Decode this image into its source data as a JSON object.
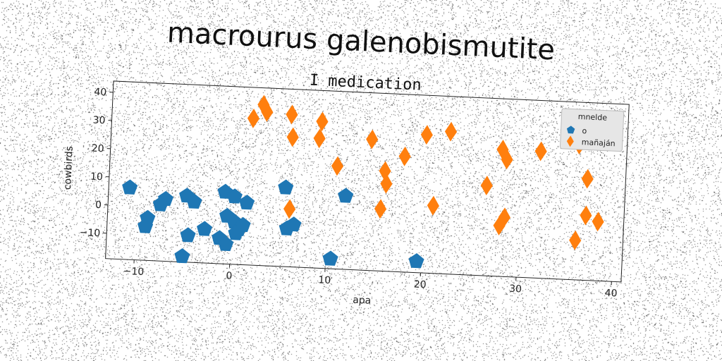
{
  "title": "macrourus galenobismutite",
  "chart_data": {
    "type": "scatter",
    "subtitle": "I medication",
    "xlabel": "apa",
    "ylabel": "cowbirds",
    "xlim": [
      -13,
      41
    ],
    "ylim": [
      -19,
      44
    ],
    "xticks": [
      -10,
      0,
      10,
      20,
      30,
      40
    ],
    "yticks": [
      -10,
      0,
      10,
      20,
      30,
      40
    ],
    "xtick_labels": [
      "−10",
      "0",
      "10",
      "20",
      "30",
      "40"
    ],
    "ytick_labels": [
      "−10",
      "0",
      "10",
      "20",
      "30",
      "40"
    ],
    "legend": {
      "title": "mnelde",
      "placement": "top-right"
    },
    "series": [
      {
        "name": "o",
        "marker": "pentagon",
        "color": "#1f77b4",
        "points": [
          [
            -10.8,
            6.5
          ],
          [
            -8.8,
            -4
          ],
          [
            -9.0,
            -7
          ],
          [
            -7.0,
            3
          ],
          [
            -7.5,
            1
          ],
          [
            -4.8,
            4.5
          ],
          [
            -4.0,
            2.5
          ],
          [
            -4.5,
            -9.5
          ],
          [
            -5.0,
            -17
          ],
          [
            -2.8,
            -7
          ],
          [
            -1.2,
            -10
          ],
          [
            -0.5,
            -12
          ],
          [
            -0.8,
            6.5
          ],
          [
            0.2,
            5
          ],
          [
            -0.5,
            -2
          ],
          [
            0.3,
            -4
          ],
          [
            0.8,
            -6.5
          ],
          [
            1.2,
            -5
          ],
          [
            0.5,
            -8
          ],
          [
            1.5,
            3
          ],
          [
            5.5,
            9
          ],
          [
            5.8,
            -5.5
          ],
          [
            6.5,
            -4
          ],
          [
            11.8,
            7
          ],
          [
            10.5,
            -15.5
          ],
          [
            19.5,
            -15
          ]
        ]
      },
      {
        "name": "mañaján",
        "marker": "thin_diamond",
        "color": "#ff7f0e",
        "points": [
          [
            1.8,
            33
          ],
          [
            2.8,
            38
          ],
          [
            3.2,
            35.5
          ],
          [
            5.8,
            35
          ],
          [
            6.0,
            27
          ],
          [
            8.8,
            27
          ],
          [
            9.0,
            33
          ],
          [
            6.0,
            1.5
          ],
          [
            10.8,
            17.5
          ],
          [
            14.3,
            27.5
          ],
          [
            15.8,
            16.5
          ],
          [
            16.0,
            12
          ],
          [
            15.5,
            3
          ],
          [
            17.8,
            22
          ],
          [
            20.0,
            30
          ],
          [
            22.5,
            31.5
          ],
          [
            21.0,
            5
          ],
          [
            26.5,
            13
          ],
          [
            28.0,
            26
          ],
          [
            28.5,
            22.5
          ],
          [
            28.5,
            2
          ],
          [
            28.0,
            -1
          ],
          [
            32.0,
            26
          ],
          [
            36.0,
            29
          ],
          [
            36.0,
            -5
          ],
          [
            37.0,
            17
          ],
          [
            37.0,
            4
          ],
          [
            38.3,
            2
          ]
        ]
      }
    ]
  }
}
